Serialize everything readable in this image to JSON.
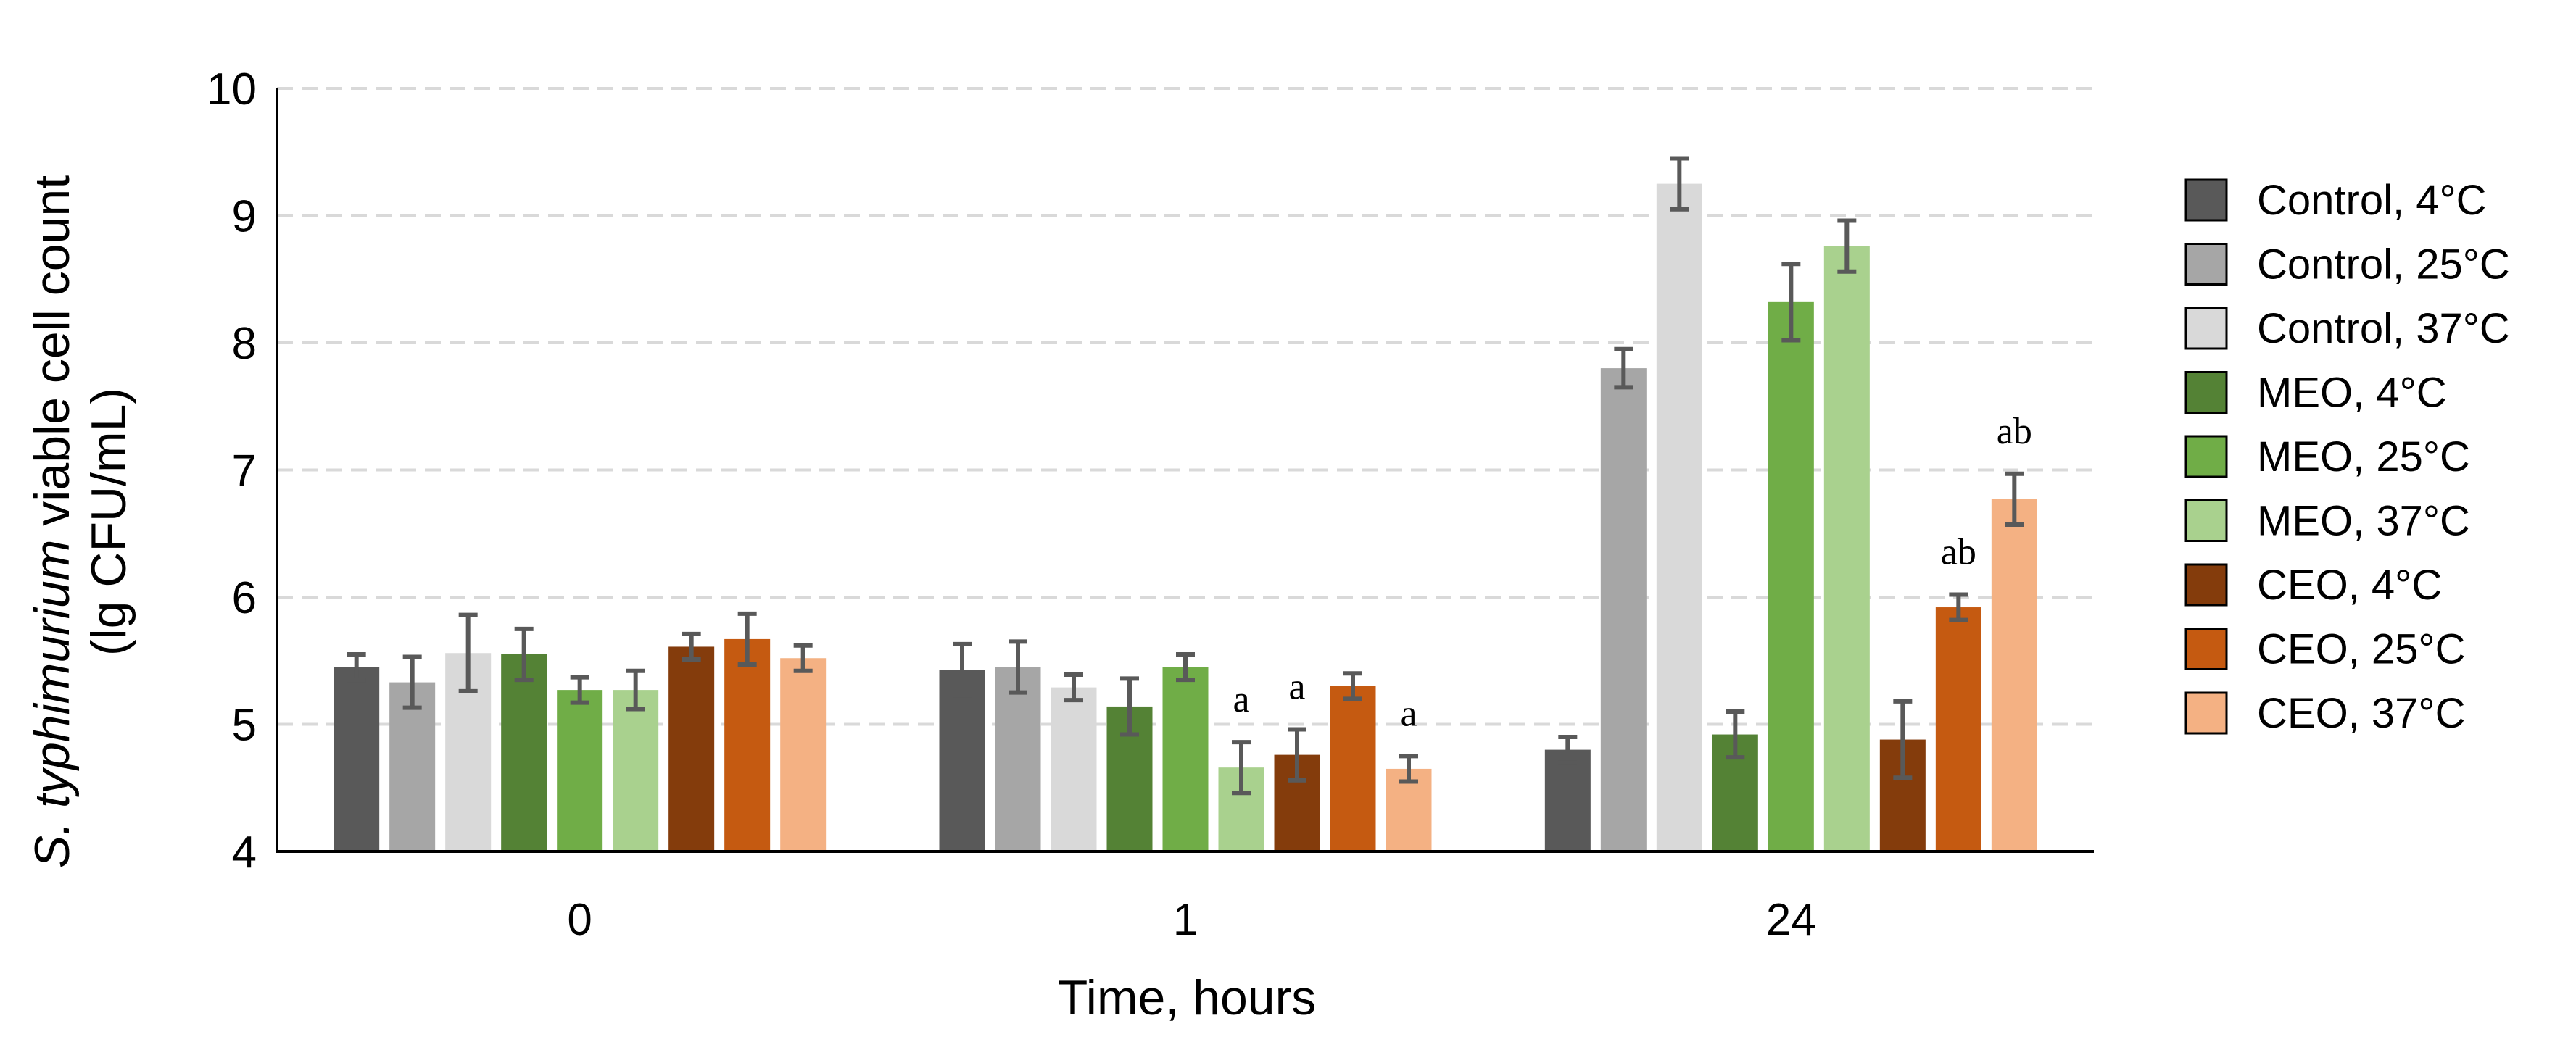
{
  "chart_data": {
    "type": "bar",
    "categories": [
      "0",
      "1",
      "24"
    ],
    "xlabel": "Time, hours",
    "ylabel_italic": "S. typhimurium",
    "ylabel_rest": " viable cell count",
    "ylabel_line2": "(lg CFU/mL)",
    "ylim": [
      4,
      10
    ],
    "yticks": [
      "4",
      "5",
      "6",
      "7",
      "8",
      "9",
      "10"
    ],
    "grid": true,
    "legend_position": "right",
    "series": [
      {
        "name": "Control, 4°C",
        "color": "#595959",
        "values": [
          5.45,
          5.43,
          4.8
        ],
        "errors": [
          0.1,
          0.2,
          0.1
        ],
        "annotations": [
          "",
          "",
          ""
        ]
      },
      {
        "name": "Control, 25°C",
        "color": "#a6a6a6",
        "values": [
          5.33,
          5.45,
          7.8
        ],
        "errors": [
          0.2,
          0.2,
          0.15
        ],
        "annotations": [
          "",
          "",
          ""
        ]
      },
      {
        "name": "Control, 37°C",
        "color": "#d9d9d9",
        "values": [
          5.56,
          5.29,
          9.25
        ],
        "errors": [
          0.3,
          0.1,
          0.2
        ],
        "annotations": [
          "",
          "",
          ""
        ]
      },
      {
        "name": "MEO, 4°C",
        "color": "#548235",
        "values": [
          5.55,
          5.14,
          4.92
        ],
        "errors": [
          0.2,
          0.22,
          0.18
        ],
        "annotations": [
          "",
          "",
          ""
        ]
      },
      {
        "name": "MEO, 25°C",
        "color": "#70ad47",
        "values": [
          5.27,
          5.45,
          8.32
        ],
        "errors": [
          0.1,
          0.1,
          0.3
        ],
        "annotations": [
          "",
          "",
          ""
        ]
      },
      {
        "name": "MEO, 37°C",
        "color": "#a9d18e",
        "values": [
          5.27,
          4.66,
          8.76
        ],
        "errors": [
          0.15,
          0.2,
          0.2
        ],
        "annotations": [
          "",
          "a",
          ""
        ]
      },
      {
        "name": "CEO, 4°C",
        "color": "#843c0c",
        "values": [
          5.61,
          4.76,
          4.88
        ],
        "errors": [
          0.1,
          0.2,
          0.3
        ],
        "annotations": [
          "",
          "a",
          ""
        ]
      },
      {
        "name": "CEO, 25°C",
        "color": "#c55a11",
        "values": [
          5.67,
          5.3,
          5.92
        ],
        "errors": [
          0.2,
          0.1,
          0.1
        ],
        "annotations": [
          "",
          "",
          "ab"
        ]
      },
      {
        "name": "CEO, 37°C",
        "color": "#f4b183",
        "values": [
          5.52,
          4.65,
          6.77
        ],
        "errors": [
          0.1,
          0.1,
          0.2
        ],
        "annotations": [
          "",
          "a",
          "ab"
        ]
      }
    ]
  }
}
